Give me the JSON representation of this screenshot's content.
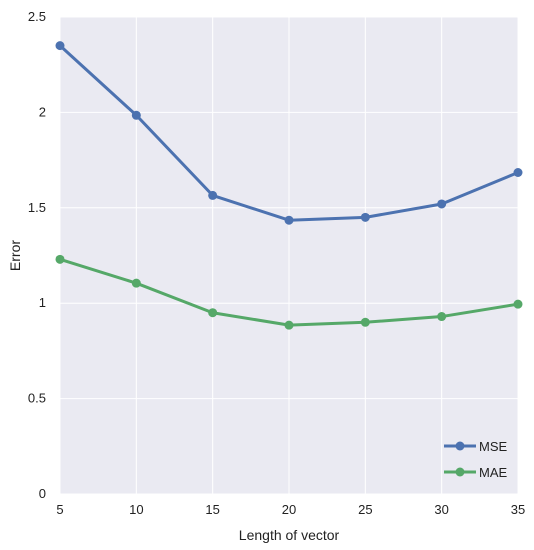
{
  "chart_data": {
    "type": "line",
    "title": "",
    "xlabel": "Length of vector",
    "ylabel": "Error",
    "x": [
      5,
      10,
      15,
      20,
      25,
      30,
      35
    ],
    "xticks": [
      "5",
      "10",
      "15",
      "20",
      "25",
      "30",
      "35"
    ],
    "yticks": [
      "0",
      "0.5",
      "1",
      "1.5",
      "2",
      "2.5"
    ],
    "xlim": [
      5,
      35
    ],
    "ylim": [
      0,
      2.5
    ],
    "grid": true,
    "legend_position": "bottom-right",
    "series": [
      {
        "name": "MSE",
        "color": "#4C72B0",
        "values": [
          2.35,
          1.985,
          1.565,
          1.435,
          1.45,
          1.52,
          1.685
        ]
      },
      {
        "name": "MAE",
        "color": "#55A868",
        "values": [
          1.23,
          1.105,
          0.95,
          0.885,
          0.9,
          0.93,
          0.995
        ]
      }
    ],
    "plot_background": "#EAEAF2",
    "grid_color": "#FFFFFF"
  }
}
